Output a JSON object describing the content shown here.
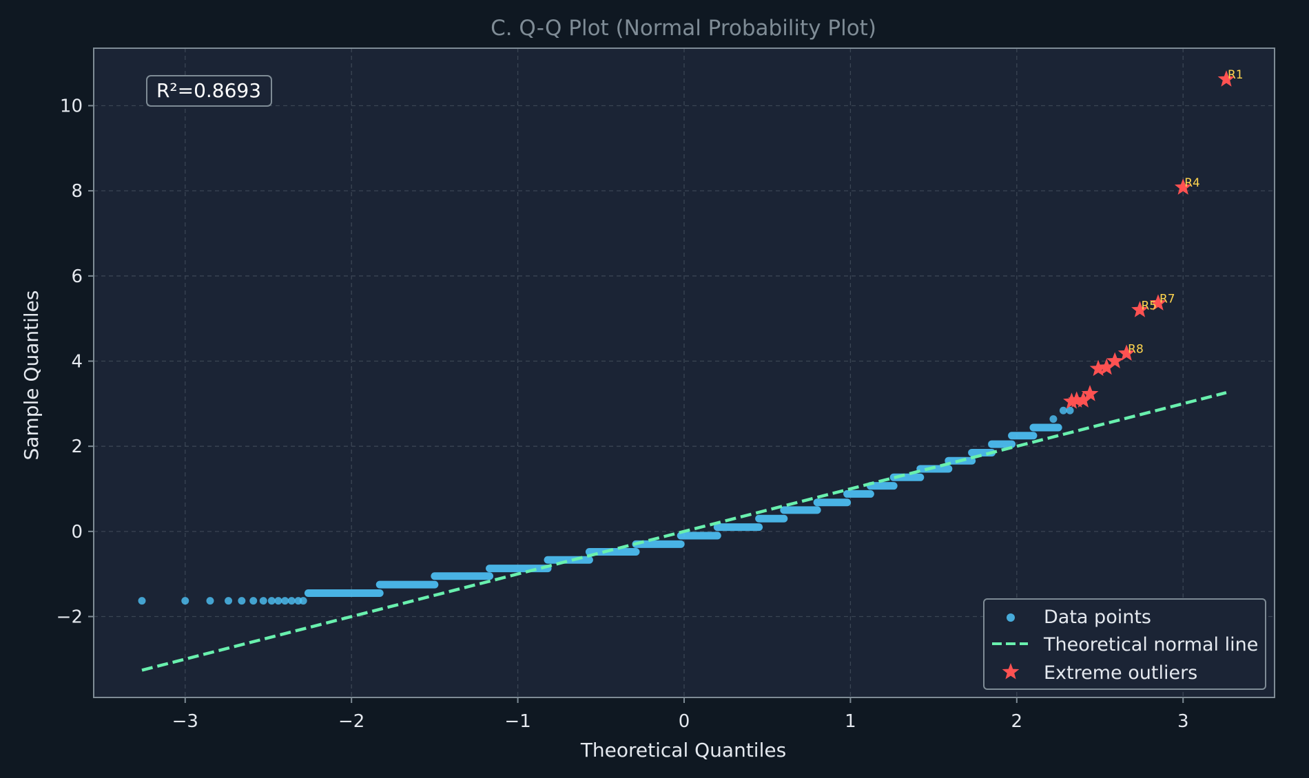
{
  "chart_data": {
    "type": "scatter",
    "title": "C. Q-Q Plot (Normal Probability Plot)",
    "xlabel": "Theoretical Quantiles",
    "ylabel": "Sample Quantiles",
    "xlim": [
      -3.55,
      3.55
    ],
    "ylim": [
      -3.9,
      11.35
    ],
    "xticks": [
      -3,
      -2,
      -1,
      0,
      1,
      2,
      3
    ],
    "xtick_labels": [
      "−3",
      "−2",
      "−1",
      "0",
      "1",
      "2",
      "3"
    ],
    "yticks": [
      -2,
      0,
      2,
      4,
      6,
      8,
      10
    ],
    "ytick_labels": [
      "−2",
      "0",
      "2",
      "4",
      "6",
      "8",
      "10"
    ],
    "grid": true,
    "legend_position": "lower-right",
    "annotation": "R²=0.8693",
    "colors": {
      "figure_bg": "#0f1822",
      "axes_bg": "#1b2435",
      "spine": "#7f8c96",
      "grid": "#3b4554",
      "title": "#7f8c96",
      "tick_text": "#e5e9ef",
      "data_points": "#4fc3f7",
      "theoretical_line": "#69f0ae",
      "outliers": "#ff5252",
      "outlier_labels": "#ffd54f"
    },
    "series": [
      {
        "name": "Data points",
        "kind": "scatter",
        "points": [
          {
            "x": -3.26,
            "y": -1.63
          },
          {
            "x": -3.0,
            "y": -1.63
          },
          {
            "x": -2.85,
            "y": -1.63
          },
          {
            "x": -2.74,
            "y": -1.63
          },
          {
            "x": -2.66,
            "y": -1.63
          },
          {
            "x": -2.59,
            "y": -1.63
          },
          {
            "x": -2.53,
            "y": -1.63
          },
          {
            "x": -2.48,
            "y": -1.63
          },
          {
            "x": -2.44,
            "y": -1.63
          },
          {
            "x": -2.4,
            "y": -1.63
          },
          {
            "x": -2.36,
            "y": -1.63
          },
          {
            "x": -2.32,
            "y": -1.63
          },
          {
            "x": -2.29,
            "y": -1.63
          }
        ],
        "staircase": [
          {
            "x_from": -2.26,
            "x_to": -1.83,
            "y": -1.45
          },
          {
            "x_from": -1.83,
            "x_to": -1.5,
            "y": -1.25
          },
          {
            "x_from": -1.5,
            "x_to": -1.17,
            "y": -1.05
          },
          {
            "x_from": -1.17,
            "x_to": -0.82,
            "y": -0.87
          },
          {
            "x_from": -0.82,
            "x_to": -0.57,
            "y": -0.67
          },
          {
            "x_from": -0.57,
            "x_to": -0.29,
            "y": -0.48
          },
          {
            "x_from": -0.29,
            "x_to": -0.02,
            "y": -0.3
          },
          {
            "x_from": -0.02,
            "x_to": 0.2,
            "y": -0.1
          },
          {
            "x_from": 0.2,
            "x_to": 0.45,
            "y": 0.1
          },
          {
            "x_from": 0.45,
            "x_to": 0.6,
            "y": 0.3
          },
          {
            "x_from": 0.6,
            "x_to": 0.8,
            "y": 0.5
          },
          {
            "x_from": 0.8,
            "x_to": 0.98,
            "y": 0.68
          },
          {
            "x_from": 0.98,
            "x_to": 1.12,
            "y": 0.88
          },
          {
            "x_from": 1.12,
            "x_to": 1.26,
            "y": 1.07
          },
          {
            "x_from": 1.26,
            "x_to": 1.42,
            "y": 1.27
          },
          {
            "x_from": 1.42,
            "x_to": 1.59,
            "y": 1.47
          },
          {
            "x_from": 1.59,
            "x_to": 1.73,
            "y": 1.66
          },
          {
            "x_from": 1.73,
            "x_to": 1.85,
            "y": 1.85
          },
          {
            "x_from": 1.85,
            "x_to": 1.97,
            "y": 2.05
          },
          {
            "x_from": 1.97,
            "x_to": 2.1,
            "y": 2.25
          },
          {
            "x_from": 2.1,
            "x_to": 2.25,
            "y": 2.44
          }
        ],
        "tail_points": [
          {
            "x": 2.22,
            "y": 2.64
          },
          {
            "x": 2.28,
            "y": 2.84
          },
          {
            "x": 2.32,
            "y": 2.84
          }
        ]
      },
      {
        "name": "Theoretical normal line",
        "kind": "line",
        "points": [
          {
            "x": -3.26,
            "y": -3.26
          },
          {
            "x": 3.26,
            "y": 3.26
          }
        ]
      },
      {
        "name": "Extreme outliers",
        "kind": "scatter",
        "points": [
          {
            "x": 3.26,
            "y": 10.62,
            "label": "R1"
          },
          {
            "x": 3.0,
            "y": 8.08,
            "label": "R4"
          },
          {
            "x": 2.85,
            "y": 5.36,
            "label": "R7"
          },
          {
            "x": 2.74,
            "y": 5.2,
            "label": "R5"
          },
          {
            "x": 2.66,
            "y": 4.18,
            "label": "R8"
          },
          {
            "x": 2.59,
            "y": 4.0
          },
          {
            "x": 2.54,
            "y": 3.85
          },
          {
            "x": 2.49,
            "y": 3.82
          },
          {
            "x": 2.44,
            "y": 3.23
          },
          {
            "x": 2.4,
            "y": 3.08
          },
          {
            "x": 2.36,
            "y": 3.08
          },
          {
            "x": 2.33,
            "y": 3.05
          }
        ]
      }
    ]
  }
}
